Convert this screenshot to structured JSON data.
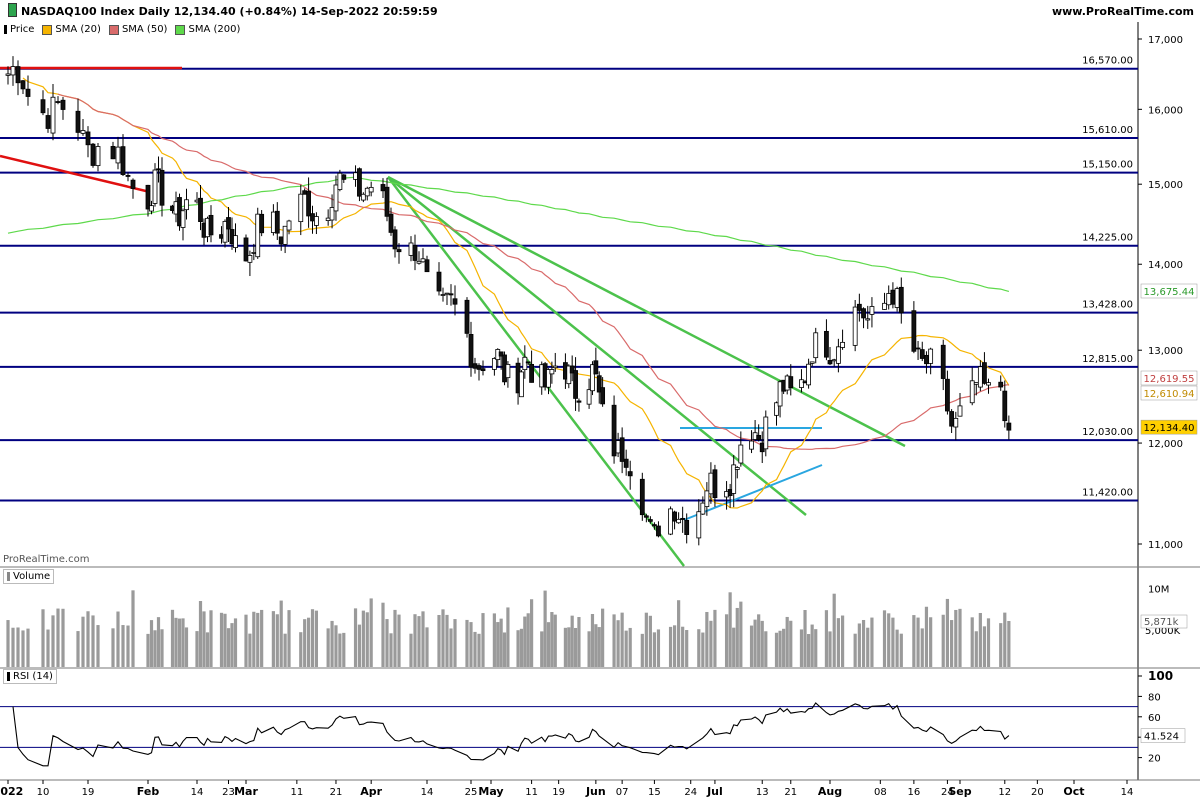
{
  "header": {
    "title_prefix": "NASDAQ100 Index Daily 12,134.40 ",
    "title_change": "(+0.84%)",
    "title_date": " 14-Sep-2022 20:59:59",
    "website": "www.ProRealTime.com",
    "watermark": "ProRealTime.com"
  },
  "legend": {
    "price": "Price",
    "sma20": "SMA (20)",
    "sma50": "SMA (50)",
    "sma200": "SMA (200)"
  },
  "colors": {
    "up_candle": "#ffffff",
    "down_candle": "#111111",
    "sma20": "#f5b400",
    "sma50": "#d96b6b",
    "sma200": "#5ed94b",
    "horizontal_lines": "#000080",
    "trend_green": "#4cc24c",
    "trend_red": "#e01010",
    "trend_blue": "#29a6e0",
    "volume": "#9a9a9a",
    "rsi": "#000000"
  },
  "chart_data": {
    "type": "candlestick",
    "title": "NASDAQ100 Index Daily 12,134.40 (+0.84%) 14-Sep-2022 20:59:59",
    "date_range": [
      "2022-01-03",
      "2022-09-14"
    ],
    "xlabel": "",
    "ylabel": "",
    "x_ticks": [
      "2022",
      "10",
      "19",
      "Feb",
      "14",
      "23",
      "Mar",
      "11",
      "21",
      "Apr",
      "14",
      "25",
      "May",
      "11",
      "19",
      "Jun",
      "07",
      "15",
      "24",
      "Jul",
      "13",
      "21",
      "Aug",
      "08",
      "16",
      "24",
      "Sep",
      "12",
      "20",
      "Oct",
      "14"
    ],
    "y_ticks": [
      "17,000",
      "16,000",
      "15,000",
      "14,000",
      "13,000",
      "12,000",
      "11,000"
    ],
    "ylim": [
      10700,
      17300
    ],
    "log_scale": true,
    "grid": false,
    "series": [
      {
        "name": "Price",
        "type": "candlestick",
        "monthly_closes": [
          {
            "date": "2022-01-03",
            "close": 16500
          },
          {
            "date": "2022-01-31",
            "close": 14930
          },
          {
            "date": "2022-02-28",
            "close": 14240
          },
          {
            "date": "2022-03-29",
            "close": 15070
          },
          {
            "date": "2022-04-29",
            "close": 12850
          },
          {
            "date": "2022-05-31",
            "close": 12650
          },
          {
            "date": "2022-06-16",
            "close": 11130
          },
          {
            "date": "2022-06-30",
            "close": 11500
          },
          {
            "date": "2022-07-29",
            "close": 12950
          },
          {
            "date": "2022-08-16",
            "close": 13630
          },
          {
            "date": "2022-08-31",
            "close": 12270
          },
          {
            "date": "2022-09-12",
            "close": 12740
          },
          {
            "date": "2022-09-14",
            "close": 12134.4
          }
        ]
      },
      {
        "name": "SMA (20)",
        "last": "12,610.94"
      },
      {
        "name": "SMA (50)",
        "last": "12,619.55"
      },
      {
        "name": "SMA (200)",
        "last": "13,675.44"
      }
    ],
    "horizontal_levels": [
      "16,570.00",
      "15,610.00",
      "15,150.00",
      "14,225.00",
      "13,428.00",
      "12,815.00",
      "12,030.00",
      "11,420.00"
    ],
    "badges": {
      "price": "12,134.40",
      "sma20": "12,610.94",
      "sma50": "12,619.55",
      "sma200": "13,675.44"
    },
    "volume": {
      "label": "Volume",
      "y_ticks": [
        "10M",
        "5,000K"
      ],
      "last": "5,871k",
      "last_value": 5871000
    },
    "rsi": {
      "label": "RSI (14)",
      "y_ticks": [
        "100",
        "80",
        "60",
        "40",
        "20"
      ],
      "ylim": [
        0,
        100
      ],
      "bands": [
        70,
        30
      ],
      "last": "41.524",
      "last_value": 41.524
    }
  }
}
